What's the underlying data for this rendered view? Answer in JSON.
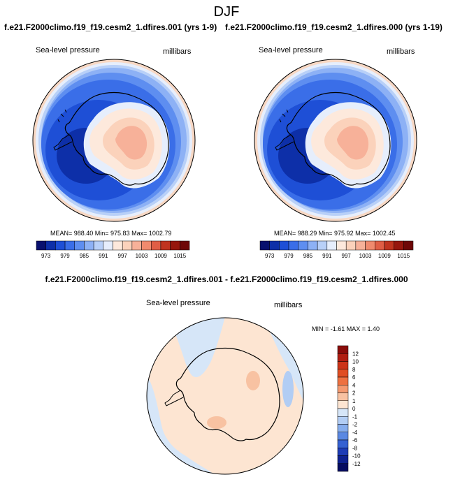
{
  "page": {
    "title": "DJF",
    "case_left": "f.e21.F2000climo.f19_f19.cesm2_1.dfires.001 (yrs 1-9)",
    "case_right": "f.e21.F2000climo.f19_f19.cesm2_1.dfires.000 (yrs 1-19)",
    "diff_title": "f.e21.F2000climo.f19_f19.cesm2_1.dfires.001 - f.e21.F2000climo.f19_f19.cesm2_1.dfires.000"
  },
  "panels": {
    "left": {
      "variable": "Sea-level pressure",
      "units": "millibars",
      "stats": "MEAN= 988.40   Min= 975.83   Max= 1002.79"
    },
    "right": {
      "variable": "Sea-level pressure",
      "units": "millibars",
      "stats": "MEAN= 988.29   Min= 975.92   Max= 1002.45"
    },
    "diff": {
      "variable": "Sea-level pressure",
      "units": "millibars",
      "stats": "MIN =  -1.61  MAX =   1.40"
    }
  },
  "chart_data": [
    {
      "type": "heatmap",
      "title": "Sea-level pressure (yrs 1-9)",
      "projection": "south-polar stereographic",
      "units": "millibars",
      "mean": 988.4,
      "min": 975.83,
      "max": 1002.79,
      "colorbar": {
        "levels": [
          973,
          976,
          979,
          982,
          985,
          988,
          991,
          994,
          997,
          1000,
          1003,
          1006,
          1009,
          1012,
          1015
        ],
        "labels": [
          "973",
          "979",
          "985",
          "991",
          "997",
          "1003",
          "1009",
          "1015"
        ],
        "colors": [
          "#08106e",
          "#0d2fa8",
          "#1e4fd6",
          "#3a6ee8",
          "#5e8ef0",
          "#8db1f5",
          "#b8d0f8",
          "#e6eefc",
          "#fde9dc",
          "#fbd2bb",
          "#f7b199",
          "#f08a6e",
          "#e05e45",
          "#c0341f",
          "#96160d",
          "#6e0707"
        ]
      }
    },
    {
      "type": "heatmap",
      "title": "Sea-level pressure (yrs 1-19)",
      "projection": "south-polar stereographic",
      "units": "millibars",
      "mean": 988.29,
      "min": 975.92,
      "max": 1002.45,
      "colorbar": {
        "levels": [
          973,
          976,
          979,
          982,
          985,
          988,
          991,
          994,
          997,
          1000,
          1003,
          1006,
          1009,
          1012,
          1015
        ],
        "labels": [
          "973",
          "979",
          "985",
          "991",
          "997",
          "1003",
          "1009",
          "1015"
        ],
        "colors": [
          "#08106e",
          "#0d2fa8",
          "#1e4fd6",
          "#3a6ee8",
          "#5e8ef0",
          "#8db1f5",
          "#b8d0f8",
          "#e6eefc",
          "#fde9dc",
          "#fbd2bb",
          "#f7b199",
          "#f08a6e",
          "#e05e45",
          "#c0341f",
          "#96160d",
          "#6e0707"
        ]
      }
    },
    {
      "type": "heatmap",
      "title": "Sea-level pressure difference",
      "projection": "south-polar stereographic",
      "units": "millibars",
      "min": -1.61,
      "max": 1.4,
      "colorbar": {
        "labels": [
          "12",
          "10",
          "8",
          "6",
          "4",
          "2",
          "1",
          "0",
          "-1",
          "-2",
          "-4",
          "-6",
          "-8",
          "-10",
          "-12"
        ],
        "colors": [
          "#8a0c0a",
          "#b01e12",
          "#cc3418",
          "#e04e22",
          "#ee7140",
          "#f59a70",
          "#f8c2a2",
          "#fde5d2",
          "#d6e6f8",
          "#b2cdf4",
          "#86aded",
          "#5a88e2",
          "#3561d2",
          "#1d3cb6",
          "#0e218f",
          "#060c60"
        ]
      }
    }
  ]
}
